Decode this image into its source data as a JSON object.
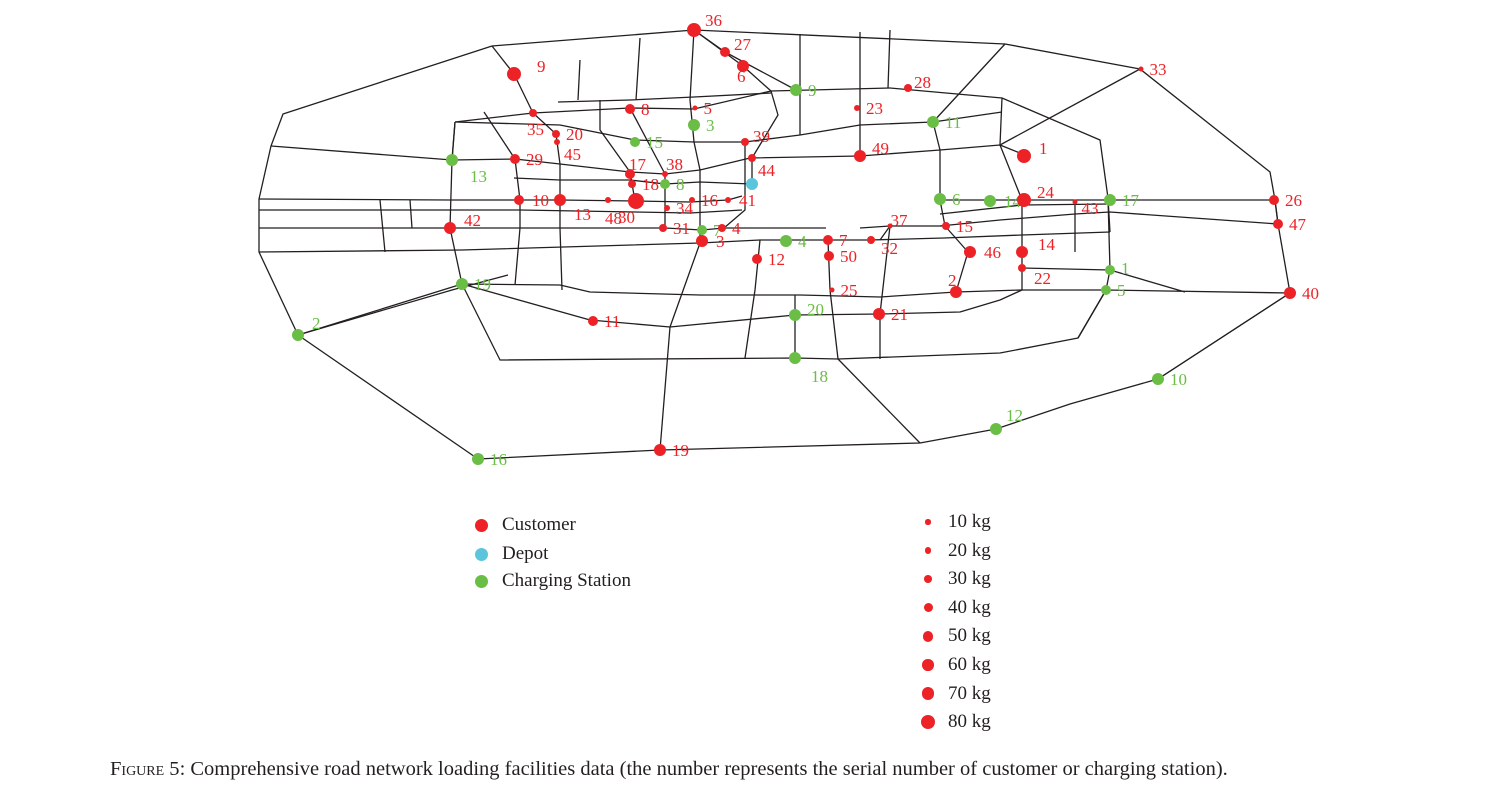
{
  "colors": {
    "customer": "#ec2227",
    "depot": "#5bc5dc",
    "charging": "#6abd45",
    "road": "#231f20"
  },
  "legend": {
    "types": [
      {
        "key": "customer",
        "label": "Customer"
      },
      {
        "key": "depot",
        "label": "Depot"
      },
      {
        "key": "charging",
        "label": "Charging Station"
      }
    ],
    "sizes": [
      {
        "label": "10 kg",
        "kg": 10
      },
      {
        "label": "20 kg",
        "kg": 20
      },
      {
        "label": "30 kg",
        "kg": 30
      },
      {
        "label": "40 kg",
        "kg": 40
      },
      {
        "label": "50 kg",
        "kg": 50
      },
      {
        "label": "60 kg",
        "kg": 60
      },
      {
        "label": "70 kg",
        "kg": 70
      },
      {
        "label": "80 kg",
        "kg": 80
      }
    ]
  },
  "caption": {
    "figure_label": "Figure 5",
    "text": ": Comprehensive road network loading facilities data (the number represents the serial number of customer or charging station)."
  },
  "customers": [
    "1",
    "2",
    "3",
    "4",
    "5",
    "6",
    "7",
    "8",
    "9",
    "10",
    "11",
    "12",
    "13",
    "14",
    "15",
    "16",
    "17",
    "18",
    "19",
    "20",
    "21",
    "22",
    "23",
    "24",
    "25",
    "26",
    "27",
    "28",
    "29",
    "30",
    "31",
    "32",
    "33",
    "34",
    "35",
    "36",
    "37",
    "38",
    "39",
    "40",
    "41",
    "42",
    "43",
    "44",
    "45",
    "46",
    "47",
    "48",
    "49",
    "50"
  ],
  "charging_stations": [
    "1",
    "2",
    "3",
    "4",
    "5",
    "6",
    "7",
    "8",
    "9",
    "10",
    "11",
    "12",
    "13",
    "14",
    "15",
    "16",
    "17",
    "18",
    "19",
    "20"
  ],
  "depot": "depot"
}
